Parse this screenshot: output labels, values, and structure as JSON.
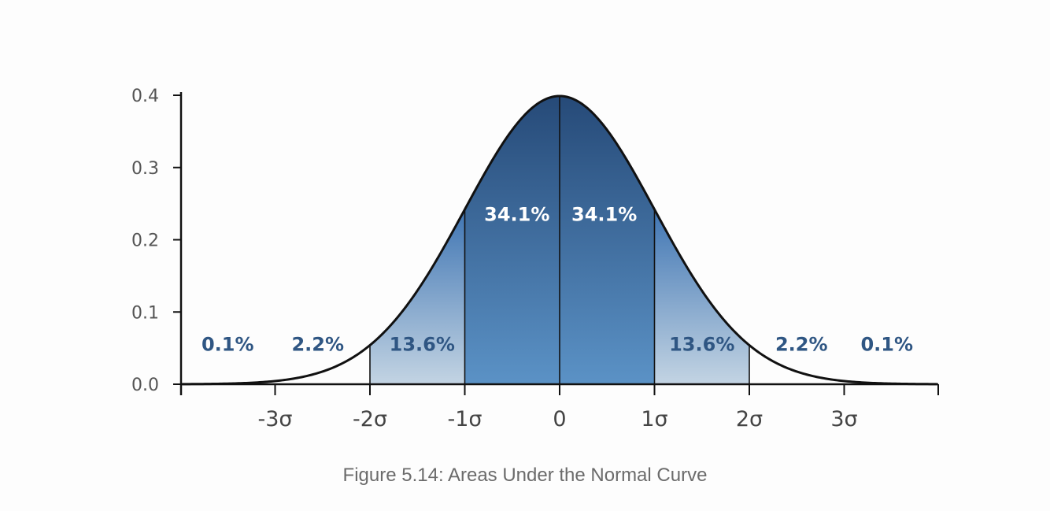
{
  "chart_data": {
    "type": "area",
    "xlim": [
      -4,
      4
    ],
    "ylim": [
      0,
      0.4
    ],
    "y_ticks": [
      "0.0",
      "0.1",
      "0.2",
      "0.3",
      "0.4"
    ],
    "x_ticks": [
      {
        "value": -3,
        "label": "-3σ"
      },
      {
        "value": -2,
        "label": "-2σ"
      },
      {
        "value": -1,
        "label": "-1σ"
      },
      {
        "value": 0,
        "label": "0"
      },
      {
        "value": 1,
        "label": "1σ"
      },
      {
        "value": 2,
        "label": "2σ"
      },
      {
        "value": 3,
        "label": "3σ"
      }
    ],
    "regions": [
      {
        "from": -4,
        "to": -3,
        "percent": "0.1%",
        "label_x": -3.5,
        "label_y": 0.055,
        "label_style": "dark",
        "fill": "none"
      },
      {
        "from": -3,
        "to": -2,
        "percent": "2.2%",
        "label_x": -2.55,
        "label_y": 0.055,
        "label_style": "dark",
        "fill": "none"
      },
      {
        "from": -2,
        "to": -1,
        "percent": "13.6%",
        "label_x": -1.45,
        "label_y": 0.055,
        "label_style": "dark",
        "fill": "url(#gLight)"
      },
      {
        "from": -1,
        "to": 0,
        "percent": "34.1%",
        "label_x": -0.45,
        "label_y": 0.235,
        "label_style": "light",
        "fill": "url(#gDark)"
      },
      {
        "from": 0,
        "to": 1,
        "percent": "34.1%",
        "label_x": 0.47,
        "label_y": 0.235,
        "label_style": "light",
        "fill": "url(#gDark)"
      },
      {
        "from": 1,
        "to": 2,
        "percent": "13.6%",
        "label_x": 1.5,
        "label_y": 0.055,
        "label_style": "dark",
        "fill": "url(#gLight)"
      },
      {
        "from": 2,
        "to": 3,
        "percent": "2.2%",
        "label_x": 2.55,
        "label_y": 0.055,
        "label_style": "dark",
        "fill": "none"
      },
      {
        "from": 3,
        "to": 4,
        "percent": "0.1%",
        "label_x": 3.45,
        "label_y": 0.055,
        "label_style": "dark",
        "fill": "none"
      }
    ],
    "colors": {
      "curve": "#111111",
      "axis": "#111111",
      "dark_top": "#264a78",
      "dark_bottom": "#5b92c6",
      "light_top": "#3f75b3",
      "light_bottom": "#c3d4e3",
      "label_dark": "#2f5683",
      "label_light": "#ffffff"
    }
  },
  "caption": "Figure 5.14: Areas Under the Normal Curve"
}
